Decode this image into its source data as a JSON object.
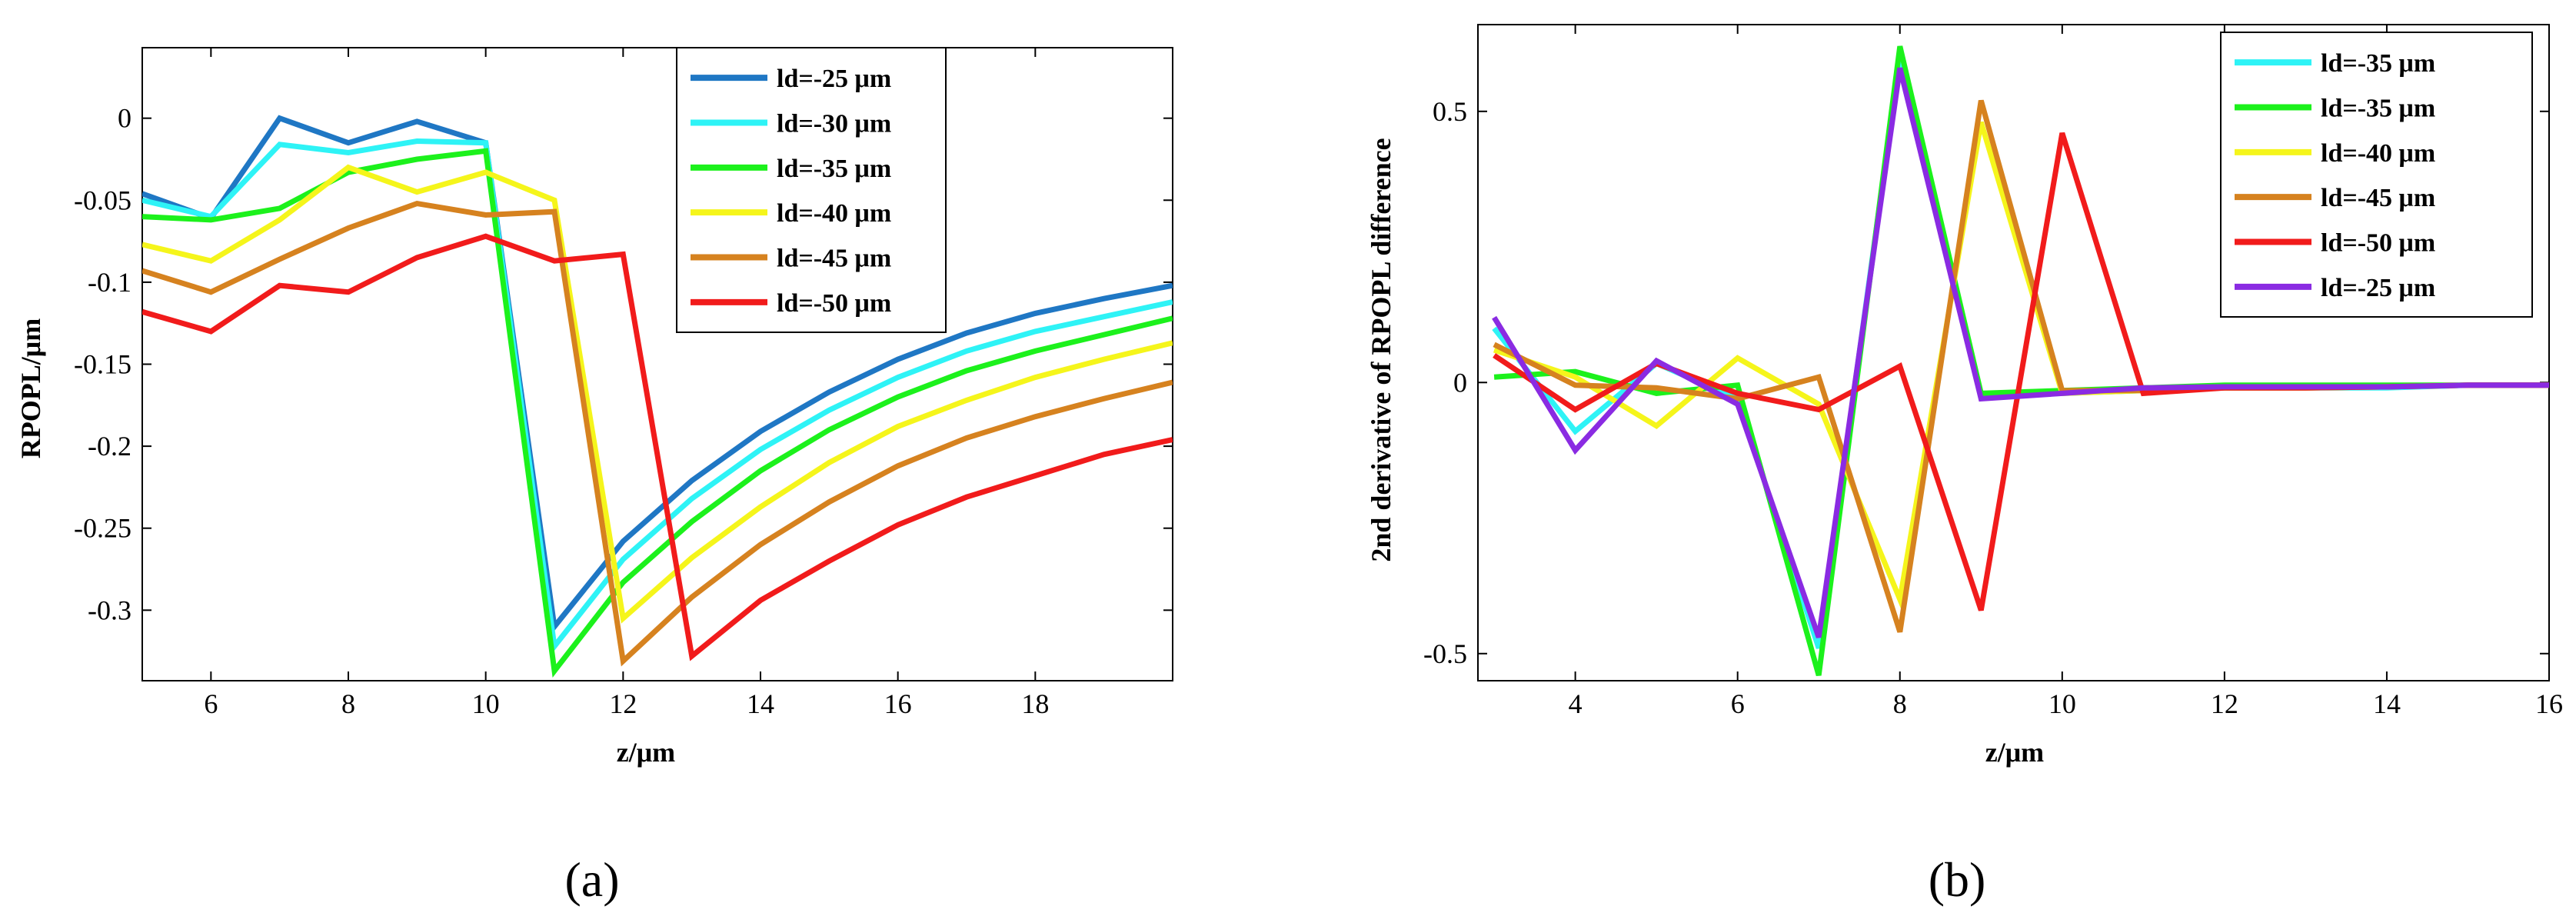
{
  "colors": {
    "c25": "#1f77c4",
    "c30": "#2ef3f6",
    "c35": "#1cf11c",
    "c40": "#f5f51b",
    "c45": "#d6821f",
    "c50": "#f11b1b",
    "purple": "#8a2be2"
  },
  "chart_data": [
    {
      "type": "line",
      "panel_label": "(a)",
      "xlabel": "z/μm",
      "ylabel": "RPOPL/μm",
      "xlim": [
        5,
        20
      ],
      "ylim": [
        -0.343,
        0.043
      ],
      "xticks": [
        6,
        8,
        10,
        12,
        14,
        16,
        18
      ],
      "xtick_labels": [
        "6",
        "8",
        "10",
        "12",
        "14",
        "16",
        "18"
      ],
      "yticks": [
        0,
        -0.05,
        -0.1,
        -0.15,
        -0.2,
        -0.25,
        -0.3
      ],
      "ytick_labels": [
        "0",
        "-0.05",
        "-0.1",
        "-0.15",
        "-0.2",
        "-0.25",
        "-0.3"
      ],
      "legend_position": "top-right",
      "x": [
        5,
        6,
        7,
        8,
        9,
        10,
        11,
        12,
        13,
        14,
        15,
        16,
        17,
        18,
        19,
        20
      ],
      "series": [
        {
          "name": "ld=-25 μm",
          "color": "#1f77c4",
          "values": [
            -0.046,
            -0.061,
            0.0,
            -0.015,
            -0.002,
            -0.015,
            -0.31,
            -0.258,
            -0.221,
            -0.191,
            -0.167,
            -0.147,
            -0.131,
            -0.119,
            -0.11,
            -0.102
          ]
        },
        {
          "name": "ld=-30 μm",
          "color": "#2ef3f6",
          "values": [
            -0.05,
            -0.06,
            -0.016,
            -0.021,
            -0.014,
            -0.015,
            -0.322,
            -0.269,
            -0.232,
            -0.202,
            -0.178,
            -0.158,
            -0.142,
            -0.13,
            -0.121,
            -0.112
          ]
        },
        {
          "name": "ld=-35 μm",
          "color": "#1cf11c",
          "values": [
            -0.06,
            -0.062,
            -0.055,
            -0.033,
            -0.025,
            -0.02,
            -0.337,
            -0.283,
            -0.246,
            -0.215,
            -0.19,
            -0.17,
            -0.154,
            -0.142,
            -0.132,
            -0.122
          ]
        },
        {
          "name": "ld=-40 μm",
          "color": "#f5f51b",
          "values": [
            -0.077,
            -0.087,
            -0.062,
            -0.03,
            -0.045,
            -0.033,
            -0.05,
            -0.305,
            -0.268,
            -0.237,
            -0.21,
            -0.188,
            -0.172,
            -0.158,
            -0.147,
            -0.137
          ]
        },
        {
          "name": "ld=-45 μm",
          "color": "#d6821f",
          "values": [
            -0.093,
            -0.106,
            -0.086,
            -0.067,
            -0.052,
            -0.059,
            -0.057,
            -0.331,
            -0.292,
            -0.26,
            -0.234,
            -0.212,
            -0.195,
            -0.182,
            -0.171,
            -0.161
          ]
        },
        {
          "name": "ld=-50 μm",
          "color": "#f11b1b",
          "values": [
            -0.118,
            -0.13,
            -0.102,
            -0.106,
            -0.085,
            -0.072,
            -0.087,
            -0.083,
            -0.328,
            -0.294,
            -0.27,
            -0.248,
            -0.231,
            -0.218,
            -0.205,
            -0.196
          ]
        }
      ]
    },
    {
      "type": "line",
      "panel_label": "(b)",
      "xlabel": "z/μm",
      "ylabel": "2nd derivative of RPOPL difference",
      "xlim": [
        2.8,
        16
      ],
      "ylim": [
        -0.55,
        0.66
      ],
      "xticks": [
        4,
        6,
        8,
        10,
        12,
        14,
        16
      ],
      "xtick_labels": [
        "4",
        "6",
        "8",
        "10",
        "12",
        "14",
        "16"
      ],
      "yticks": [
        0.5,
        0,
        -0.5
      ],
      "ytick_labels": [
        "0.5",
        "0",
        "-0.5"
      ],
      "legend_position": "top-right",
      "x": [
        3,
        4,
        5,
        6,
        7,
        8,
        9,
        10,
        11,
        12,
        13,
        14,
        15,
        16
      ],
      "series": [
        {
          "name": "ld=-35 μm",
          "color": "#2ef3f6",
          "values": [
            0.1,
            -0.09,
            0.035,
            -0.03,
            -0.49,
            0.6,
            -0.025,
            -0.02,
            -0.015,
            -0.01,
            -0.01,
            -0.01,
            -0.005,
            -0.005
          ]
        },
        {
          "name": "ld=-35 μm",
          "color": "#1cf11c",
          "values": [
            0.01,
            0.02,
            -0.02,
            -0.005,
            -0.54,
            0.62,
            -0.02,
            -0.015,
            -0.01,
            -0.005,
            -0.005,
            -0.005,
            -0.005,
            -0.005
          ]
        },
        {
          "name": "ld=-40 μm",
          "color": "#f5f51b",
          "values": [
            0.06,
            0.01,
            -0.08,
            0.045,
            -0.04,
            -0.4,
            0.48,
            -0.02,
            -0.015,
            -0.01,
            -0.01,
            -0.008,
            -0.005,
            -0.005
          ]
        },
        {
          "name": "ld=-45 μm",
          "color": "#d6821f",
          "values": [
            0.07,
            -0.005,
            -0.01,
            -0.03,
            0.01,
            -0.46,
            0.52,
            -0.015,
            -0.015,
            -0.01,
            -0.01,
            -0.008,
            -0.005,
            -0.005
          ]
        },
        {
          "name": "ld=-50 μm",
          "color": "#f11b1b",
          "values": [
            0.05,
            -0.05,
            0.035,
            -0.02,
            -0.05,
            0.03,
            -0.42,
            0.46,
            -0.02,
            -0.01,
            -0.01,
            -0.008,
            -0.005,
            -0.005
          ]
        },
        {
          "name": "ld=-25 μm",
          "color": "#8a2be2",
          "values": [
            0.12,
            -0.125,
            0.04,
            -0.04,
            -0.47,
            0.58,
            -0.03,
            -0.02,
            -0.01,
            -0.008,
            -0.008,
            -0.008,
            -0.005,
            -0.005
          ]
        }
      ]
    }
  ]
}
